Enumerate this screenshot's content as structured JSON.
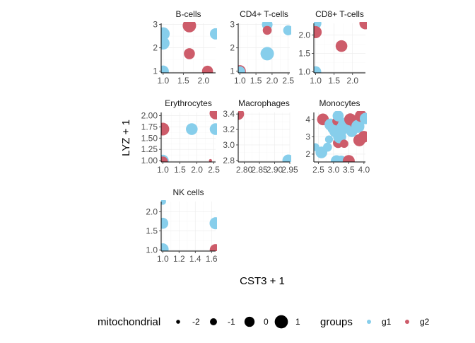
{
  "chart_data": {
    "type": "scatter",
    "facet_by": "cell type",
    "xlabel": "CST3 + 1",
    "ylabel": "LYZ + 1",
    "legends": {
      "size": {
        "title": "mitochondrial",
        "breaks": [
          -2,
          -1,
          0,
          1
        ],
        "labels": [
          "-2",
          "-1",
          "0",
          "1"
        ]
      },
      "color": {
        "title": "groups",
        "labels": [
          "g1",
          "g2"
        ],
        "colors": [
          "#87CEEB",
          "#CD5C6A"
        ]
      }
    },
    "panels": [
      {
        "title": "B-cells",
        "xlim": [
          0.95,
          2.3
        ],
        "ylim": [
          0.93,
          3.05
        ],
        "xticks": [
          1.0,
          1.5,
          2.0
        ],
        "xtick_labels": [
          "1.0",
          "1.5",
          "2.0"
        ],
        "yticks": [
          1,
          2,
          3
        ],
        "ytick_labels": [
          "1",
          "2",
          "3"
        ],
        "points": [
          {
            "x": 1.0,
            "y": 2.6,
            "size": 0.9,
            "group": "g1"
          },
          {
            "x": 1.0,
            "y": 2.2,
            "size": 0.8,
            "group": "g1"
          },
          {
            "x": 1.0,
            "y": 1.0,
            "size": 0.4,
            "group": "g1"
          },
          {
            "x": 1.65,
            "y": 2.95,
            "size": 1.0,
            "group": "g2"
          },
          {
            "x": 1.65,
            "y": 1.75,
            "size": 0.3,
            "group": "g2"
          },
          {
            "x": 2.1,
            "y": 1.0,
            "size": 0.3,
            "group": "g2"
          },
          {
            "x": 2.3,
            "y": 2.6,
            "size": 0.4,
            "group": "g1"
          }
        ]
      },
      {
        "title": "CD4+ T-cells",
        "xlim": [
          0.95,
          2.55
        ],
        "ylim": [
          0.93,
          3.05
        ],
        "xticks": [
          1.0,
          1.5,
          2.0,
          2.5
        ],
        "xtick_labels": [
          "1.0",
          "1.5",
          "2.0",
          "2.5"
        ],
        "yticks": [
          1,
          2,
          3
        ],
        "ytick_labels": [
          "1",
          "2",
          "3"
        ],
        "points": [
          {
            "x": 1.0,
            "y": 1.0,
            "size": 0.6,
            "group": "g2"
          },
          {
            "x": 1.0,
            "y": 0.98,
            "size": 0.2,
            "group": "g1"
          },
          {
            "x": 1.85,
            "y": 3.0,
            "size": 0.2,
            "group": "g1"
          },
          {
            "x": 1.85,
            "y": 2.75,
            "size": -0.3,
            "group": "g2"
          },
          {
            "x": 1.85,
            "y": 1.75,
            "size": 1.0,
            "group": "g1"
          },
          {
            "x": 2.5,
            "y": 2.75,
            "size": 0.0,
            "group": "g1"
          }
        ]
      },
      {
        "title": "CD8+ T-cells",
        "xlim": [
          0.95,
          2.35
        ],
        "ylim": [
          0.97,
          2.32
        ],
        "xticks": [
          1.0,
          1.5,
          2.0
        ],
        "xtick_labels": [
          "1.0",
          "1.5",
          "2.0"
        ],
        "yticks": [
          1.0,
          1.5,
          2.0
        ],
        "ytick_labels": [
          "1.0",
          "1.5",
          "2.0"
        ],
        "points": [
          {
            "x": 1.0,
            "y": 2.32,
            "size": 0.4,
            "group": "g1"
          },
          {
            "x": 1.0,
            "y": 2.08,
            "size": 0.6,
            "group": "g2"
          },
          {
            "x": 1.0,
            "y": 1.0,
            "size": 0.3,
            "group": "g1"
          },
          {
            "x": 1.7,
            "y": 1.7,
            "size": 0.5,
            "group": "g2"
          },
          {
            "x": 2.35,
            "y": 2.32,
            "size": 0.6,
            "group": "g2"
          }
        ]
      },
      {
        "title": "Erythrocytes",
        "xlim": [
          0.95,
          2.55
        ],
        "ylim": [
          0.97,
          2.07
        ],
        "xticks": [
          1.0,
          1.5,
          2.0,
          2.5
        ],
        "xtick_labels": [
          "1.0",
          "1.5",
          "2.0",
          "2.5"
        ],
        "yticks": [
          1.0,
          1.25,
          1.5,
          1.75,
          2.0
        ],
        "ytick_labels": [
          "1.00",
          "1.25",
          "1.50",
          "1.75",
          "2.00"
        ],
        "points": [
          {
            "x": 1.0,
            "y": 1.7,
            "size": 0.8,
            "group": "g2"
          },
          {
            "x": 1.0,
            "y": 1.0,
            "size": 0.5,
            "group": "g1"
          },
          {
            "x": 1.0,
            "y": 0.98,
            "size": 0.0,
            "group": "g2"
          },
          {
            "x": 1.85,
            "y": 1.7,
            "size": 0.5,
            "group": "g1"
          },
          {
            "x": 2.4,
            "y": 1.0,
            "size": -2.0,
            "group": "g2"
          },
          {
            "x": 2.55,
            "y": 2.05,
            "size": 0.6,
            "group": "g2"
          },
          {
            "x": 2.55,
            "y": 1.7,
            "size": 0.5,
            "group": "g1"
          }
        ]
      },
      {
        "title": "Macrophages",
        "xlim": [
          2.78,
          2.95
        ],
        "ylim": [
          2.78,
          3.42
        ],
        "xticks": [
          2.8,
          2.85,
          2.9,
          2.95
        ],
        "xtick_labels": [
          "2.80",
          "2.85",
          "2.90",
          "2.95"
        ],
        "yticks": [
          2.8,
          3.0,
          3.2,
          3.4
        ],
        "ytick_labels": [
          "2.8",
          "3.0",
          "3.2",
          "3.4"
        ],
        "points": [
          {
            "x": 2.78,
            "y": 3.4,
            "size": 0.5,
            "group": "g2"
          },
          {
            "x": 2.945,
            "y": 2.8,
            "size": 0.5,
            "group": "g1"
          }
        ]
      },
      {
        "title": "Monocytes",
        "xlim": [
          2.35,
          4.05
        ],
        "ylim": [
          1.55,
          4.4
        ],
        "xticks": [
          2.5,
          3.0,
          3.5,
          4.0
        ],
        "xtick_labels": [
          "2.5",
          "3.0",
          "3.5",
          "4.0"
        ],
        "yticks": [
          2,
          3,
          4
        ],
        "ytick_labels": [
          "2",
          "3",
          "4"
        ],
        "points": [
          {
            "x": 2.4,
            "y": 2.4,
            "size": -0.6,
            "group": "g1"
          },
          {
            "x": 2.6,
            "y": 2.1,
            "size": 0.5,
            "group": "g1"
          },
          {
            "x": 2.65,
            "y": 4.0,
            "size": 0.5,
            "group": "g2"
          },
          {
            "x": 2.8,
            "y": 2.4,
            "size": -0.3,
            "group": "g1"
          },
          {
            "x": 2.85,
            "y": 2.85,
            "size": -0.6,
            "group": "g1"
          },
          {
            "x": 2.9,
            "y": 3.7,
            "size": 0.6,
            "group": "g1"
          },
          {
            "x": 3.0,
            "y": 3.5,
            "size": 0.7,
            "group": "g1"
          },
          {
            "x": 3.05,
            "y": 3.3,
            "size": 0.4,
            "group": "g1"
          },
          {
            "x": 3.1,
            "y": 3.9,
            "size": -0.4,
            "group": "g2"
          },
          {
            "x": 3.1,
            "y": 1.6,
            "size": 0.5,
            "group": "g1"
          },
          {
            "x": 3.15,
            "y": 4.2,
            "size": 0.3,
            "group": "g1"
          },
          {
            "x": 3.15,
            "y": 2.65,
            "size": 0.1,
            "group": "g2"
          },
          {
            "x": 3.2,
            "y": 3.0,
            "size": 0.9,
            "group": "g1"
          },
          {
            "x": 3.25,
            "y": 1.6,
            "size": 0.3,
            "group": "g1"
          },
          {
            "x": 3.3,
            "y": 3.5,
            "size": 0.9,
            "group": "g1"
          },
          {
            "x": 3.35,
            "y": 3.7,
            "size": 0.8,
            "group": "g1"
          },
          {
            "x": 3.35,
            "y": 2.6,
            "size": -0.5,
            "group": "g2"
          },
          {
            "x": 3.45,
            "y": 3.8,
            "size": 0.6,
            "group": "g1"
          },
          {
            "x": 3.5,
            "y": 1.6,
            "size": 0.6,
            "group": "g2"
          },
          {
            "x": 3.55,
            "y": 4.0,
            "size": 0.6,
            "group": "g2"
          },
          {
            "x": 3.6,
            "y": 3.3,
            "size": 0.3,
            "group": "g1"
          },
          {
            "x": 3.75,
            "y": 3.8,
            "size": 0.9,
            "group": "g2"
          },
          {
            "x": 3.8,
            "y": 3.6,
            "size": 0.9,
            "group": "g1"
          },
          {
            "x": 3.85,
            "y": 2.8,
            "size": 0.6,
            "group": "g2"
          },
          {
            "x": 3.9,
            "y": 4.2,
            "size": 0.6,
            "group": "g2"
          },
          {
            "x": 4.0,
            "y": 3.0,
            "size": 0.5,
            "group": "g2"
          },
          {
            "x": 4.05,
            "y": 4.05,
            "size": 0.4,
            "group": "g1"
          }
        ]
      },
      {
        "title": "NK cells",
        "xlim": [
          0.98,
          1.65
        ],
        "ylim": [
          0.97,
          2.27
        ],
        "xticks": [
          1.0,
          1.2,
          1.4,
          1.6
        ],
        "xtick_labels": [
          "1.0",
          "1.2",
          "1.4",
          "1.6"
        ],
        "yticks": [
          1.0,
          1.5,
          2.0
        ],
        "ytick_labels": [
          "1.0",
          "1.5",
          "2.0"
        ],
        "points": [
          {
            "x": 1.0,
            "y": 2.27,
            "size": -1.0,
            "group": "g1"
          },
          {
            "x": 1.0,
            "y": 1.7,
            "size": 0.3,
            "group": "g1"
          },
          {
            "x": 1.0,
            "y": 1.02,
            "size": 0.5,
            "group": "g1"
          },
          {
            "x": 1.65,
            "y": 1.7,
            "size": 0.6,
            "group": "g1"
          },
          {
            "x": 1.65,
            "y": 1.0,
            "size": 0.5,
            "group": "g2"
          }
        ]
      }
    ]
  }
}
